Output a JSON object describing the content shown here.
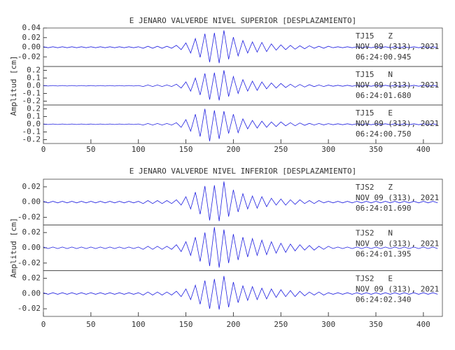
{
  "chart_data": [
    {
      "type": "line",
      "title": "E JENARO VALVERDE NIVEL SUPERIOR [DESPLAZAMIENTO]",
      "ylabel": "Amplitud [cm]",
      "color": "#2020e0",
      "xlim": [
        0,
        420
      ],
      "xticks": [
        0,
        50,
        100,
        150,
        200,
        250,
        300,
        350,
        400
      ],
      "x": [
        0,
        5,
        10,
        15,
        20,
        25,
        30,
        35,
        40,
        45,
        50,
        55,
        60,
        65,
        70,
        75,
        80,
        85,
        90,
        95,
        100,
        105,
        110,
        115,
        120,
        125,
        130,
        135,
        140,
        145,
        150,
        155,
        160,
        165,
        170,
        175,
        180,
        185,
        190,
        195,
        200,
        205,
        210,
        215,
        220,
        225,
        230,
        235,
        240,
        245,
        250,
        255,
        260,
        265,
        270,
        275,
        280,
        285,
        290,
        295,
        300,
        305,
        310,
        315,
        320,
        325,
        330,
        335,
        340,
        345,
        350,
        355,
        360,
        365,
        370,
        375,
        380,
        385,
        390,
        395,
        400,
        405,
        410,
        415
      ],
      "panels": [
        {
          "label": "TJ15   Z",
          "date": "NOV 09 (313), 2021",
          "time": "06:24:00.945",
          "ylim": [
            -0.04,
            0.04
          ],
          "yticks": [
            -0.02,
            {
              "value": 0,
              "label": "0.00"
            },
            0.02,
            0.04
          ],
          "values": [
            0.001,
            -0.001,
            0.001,
            -0.001,
            0.001,
            -0.001,
            0.001,
            -0.001,
            0.001,
            -0.001,
            0.001,
            -0.001,
            0.001,
            -0.001,
            0.001,
            -0.001,
            0.001,
            -0.001,
            0.001,
            -0.001,
            0.001,
            -0.002,
            0.002,
            -0.002,
            0.002,
            -0.002,
            0.002,
            -0.002,
            0.004,
            -0.005,
            0.009,
            -0.012,
            0.018,
            -0.021,
            0.028,
            -0.031,
            0.03,
            -0.033,
            0.035,
            -0.025,
            0.021,
            -0.018,
            0.014,
            -0.012,
            0.011,
            -0.01,
            0.01,
            -0.009,
            0.007,
            -0.006,
            0.005,
            -0.005,
            0.004,
            -0.004,
            0.003,
            -0.003,
            0.003,
            -0.002,
            0.002,
            -0.002,
            0.002,
            -0.001,
            0.001,
            -0.001,
            0.001,
            -0.001,
            0.001,
            -0.001,
            0.001,
            -0.001,
            0.001,
            -0.001,
            0.001,
            -0.001,
            0.001,
            -0.001,
            0.001,
            -0.001,
            0.001,
            -0.001,
            0.001,
            -0.001,
            0.001,
            -0.001
          ]
        },
        {
          "label": "TJ15   N",
          "date": "NOV 09 (313), 2021",
          "time": "06:24:01.680",
          "ylim": [
            -0.25,
            0.25
          ],
          "yticks": [
            -0.2,
            -0.1,
            {
              "value": 0,
              "label": "0.0"
            },
            0.1,
            0.2
          ],
          "values": [
            0.004,
            -0.004,
            0.004,
            -0.004,
            0.004,
            -0.004,
            0.004,
            -0.004,
            0.004,
            -0.004,
            0.004,
            -0.004,
            0.004,
            -0.004,
            0.004,
            -0.004,
            0.004,
            -0.004,
            0.004,
            -0.004,
            0.004,
            -0.01,
            0.01,
            -0.01,
            0.01,
            -0.01,
            0.01,
            -0.01,
            0.02,
            -0.03,
            0.05,
            -0.07,
            0.1,
            -0.12,
            0.16,
            -0.18,
            0.17,
            -0.19,
            0.2,
            -0.14,
            0.12,
            -0.1,
            0.08,
            -0.07,
            0.06,
            -0.06,
            0.05,
            -0.04,
            0.036,
            -0.03,
            0.03,
            -0.024,
            0.02,
            -0.02,
            0.016,
            -0.016,
            0.014,
            -0.012,
            0.01,
            -0.01,
            0.008,
            -0.006,
            0.006,
            -0.006,
            0.006,
            -0.006,
            0.006,
            -0.006,
            0.006,
            -0.006,
            0.006,
            -0.006,
            0.006,
            -0.006,
            0.006,
            -0.006,
            0.006,
            -0.006,
            0.006,
            -0.006,
            0.006,
            -0.006,
            0.006,
            -0.006
          ]
        },
        {
          "label": "TJ15   E",
          "date": "NOV 09 (313), 2021",
          "time": "06:24:00.750",
          "ylim": [
            -0.25,
            0.25
          ],
          "yticks": [
            -0.2,
            -0.1,
            {
              "value": 0,
              "label": "0.0"
            },
            0.1,
            0.2
          ],
          "values": [
            0.004,
            -0.004,
            0.004,
            -0.004,
            0.004,
            -0.004,
            0.004,
            -0.004,
            0.004,
            -0.004,
            0.004,
            -0.004,
            0.004,
            -0.004,
            0.004,
            -0.004,
            0.004,
            -0.004,
            0.004,
            -0.004,
            0.004,
            -0.01,
            0.01,
            -0.01,
            0.01,
            -0.01,
            0.01,
            -0.01,
            0.02,
            -0.04,
            0.06,
            -0.09,
            0.13,
            -0.16,
            0.2,
            -0.22,
            0.18,
            -0.19,
            0.17,
            -0.12,
            0.13,
            -0.11,
            0.07,
            -0.06,
            0.05,
            -0.05,
            0.04,
            -0.04,
            0.03,
            -0.03,
            0.03,
            -0.02,
            0.02,
            -0.02,
            0.016,
            -0.014,
            0.012,
            -0.01,
            0.01,
            -0.008,
            0.008,
            -0.006,
            0.006,
            -0.006,
            0.006,
            -0.006,
            0.006,
            -0.006,
            0.006,
            -0.006,
            0.006,
            -0.006,
            0.006,
            -0.006,
            0.006,
            -0.006,
            0.006,
            -0.006,
            0.006,
            -0.006,
            0.006,
            -0.006,
            0.006,
            -0.006
          ]
        }
      ]
    },
    {
      "type": "line",
      "title": "E JENARO VALVERDE NIVEL INFERIOR [DESPLAZAMIENTO]",
      "ylabel": "Amplitud [cm]",
      "color": "#2020e0",
      "xlim": [
        0,
        420
      ],
      "xticks": [
        0,
        50,
        100,
        150,
        200,
        250,
        300,
        350,
        400
      ],
      "x": [
        0,
        5,
        10,
        15,
        20,
        25,
        30,
        35,
        40,
        45,
        50,
        55,
        60,
        65,
        70,
        75,
        80,
        85,
        90,
        95,
        100,
        105,
        110,
        115,
        120,
        125,
        130,
        135,
        140,
        145,
        150,
        155,
        160,
        165,
        170,
        175,
        180,
        185,
        190,
        195,
        200,
        205,
        210,
        215,
        220,
        225,
        230,
        235,
        240,
        245,
        250,
        255,
        260,
        265,
        270,
        275,
        280,
        285,
        290,
        295,
        300,
        305,
        310,
        315,
        320,
        325,
        330,
        335,
        340,
        345,
        350,
        355,
        360,
        365,
        370,
        375,
        380,
        385,
        390,
        395,
        400,
        405,
        410,
        415
      ],
      "panels": [
        {
          "label": "TJS2   Z",
          "date": "NOV 09 (313), 2021",
          "time": "06:24:01.690",
          "ylim": [
            -0.03,
            0.03
          ],
          "yticks": [
            -0.02,
            {
              "value": 0,
              "label": "0.00"
            },
            0.02
          ],
          "values": [
            0.001,
            -0.001,
            0.001,
            -0.001,
            0.001,
            -0.001,
            0.001,
            -0.001,
            0.001,
            -0.001,
            0.001,
            -0.001,
            0.001,
            -0.001,
            0.001,
            -0.001,
            0.001,
            -0.001,
            0.001,
            -0.001,
            0.001,
            -0.002,
            0.002,
            -0.002,
            0.002,
            -0.002,
            0.002,
            -0.002,
            0.003,
            -0.004,
            0.007,
            -0.009,
            0.013,
            -0.016,
            0.021,
            -0.024,
            0.022,
            -0.025,
            0.027,
            -0.019,
            0.016,
            -0.013,
            0.011,
            -0.009,
            0.008,
            -0.008,
            0.007,
            -0.006,
            0.005,
            -0.004,
            0.004,
            -0.004,
            0.003,
            -0.003,
            0.003,
            -0.002,
            0.002,
            -0.002,
            0.002,
            -0.001,
            0.001,
            -0.001,
            0.001,
            -0.001,
            0.001,
            -0.001,
            0.001,
            -0.001,
            0.001,
            -0.001,
            0.001,
            -0.001,
            0.001,
            -0.001,
            0.001,
            -0.001,
            0.001,
            -0.001,
            0.001,
            -0.001,
            0.001,
            -0.001,
            0.001,
            -0.001
          ]
        },
        {
          "label": "TJS2   N",
          "date": "NOV 09 (313), 2021",
          "time": "06:24:01.395",
          "ylim": [
            -0.03,
            0.03
          ],
          "yticks": [
            -0.02,
            {
              "value": 0,
              "label": "0.00"
            },
            0.02
          ],
          "values": [
            0.001,
            -0.001,
            0.001,
            -0.001,
            0.001,
            -0.001,
            0.001,
            -0.001,
            0.001,
            -0.001,
            0.001,
            -0.001,
            0.001,
            -0.001,
            0.001,
            -0.001,
            0.001,
            -0.001,
            0.001,
            -0.001,
            0.001,
            -0.002,
            0.002,
            -0.002,
            0.002,
            -0.002,
            0.002,
            -0.002,
            0.004,
            -0.005,
            0.008,
            -0.01,
            0.014,
            -0.018,
            0.02,
            -0.024,
            0.027,
            -0.026,
            0.024,
            -0.02,
            0.018,
            -0.016,
            0.014,
            -0.012,
            0.012,
            -0.01,
            0.01,
            -0.009,
            0.008,
            -0.007,
            0.006,
            -0.006,
            0.005,
            -0.004,
            0.004,
            -0.003,
            0.003,
            -0.003,
            0.002,
            -0.002,
            0.002,
            -0.001,
            0.001,
            -0.001,
            0.001,
            -0.001,
            0.001,
            -0.001,
            0.001,
            -0.001,
            0.001,
            -0.001,
            0.001,
            -0.001,
            0.001,
            -0.001,
            0.001,
            -0.001,
            0.001,
            -0.001,
            0.001,
            -0.001,
            0.001,
            -0.001
          ]
        },
        {
          "label": "TJS2   E",
          "date": "NOV 09 (313), 2021",
          "time": "06:24:02.340",
          "ylim": [
            -0.03,
            0.03
          ],
          "yticks": [
            -0.02,
            {
              "value": 0,
              "label": "0.00"
            },
            0.02
          ],
          "values": [
            0.001,
            -0.001,
            0.001,
            -0.001,
            0.001,
            -0.001,
            0.001,
            -0.001,
            0.001,
            -0.001,
            0.001,
            -0.001,
            0.001,
            -0.001,
            0.001,
            -0.001,
            0.001,
            -0.001,
            0.001,
            -0.001,
            0.001,
            -0.002,
            0.002,
            -0.002,
            0.002,
            -0.002,
            0.002,
            -0.002,
            0.003,
            -0.004,
            0.006,
            -0.008,
            0.011,
            -0.014,
            0.017,
            -0.02,
            0.019,
            -0.021,
            0.023,
            -0.018,
            0.015,
            -0.012,
            0.01,
            -0.009,
            0.009,
            -0.008,
            0.007,
            -0.007,
            0.006,
            -0.005,
            0.005,
            -0.004,
            0.004,
            -0.004,
            0.003,
            -0.003,
            0.002,
            -0.002,
            0.002,
            -0.002,
            0.001,
            -0.001,
            0.001,
            -0.001,
            0.001,
            -0.001,
            0.001,
            -0.001,
            0.001,
            -0.001,
            0.001,
            -0.001,
            0.001,
            -0.001,
            0.001,
            -0.001,
            0.001,
            -0.001,
            0.001,
            -0.001,
            0.001,
            -0.001,
            0.001,
            -0.001
          ]
        }
      ]
    }
  ]
}
